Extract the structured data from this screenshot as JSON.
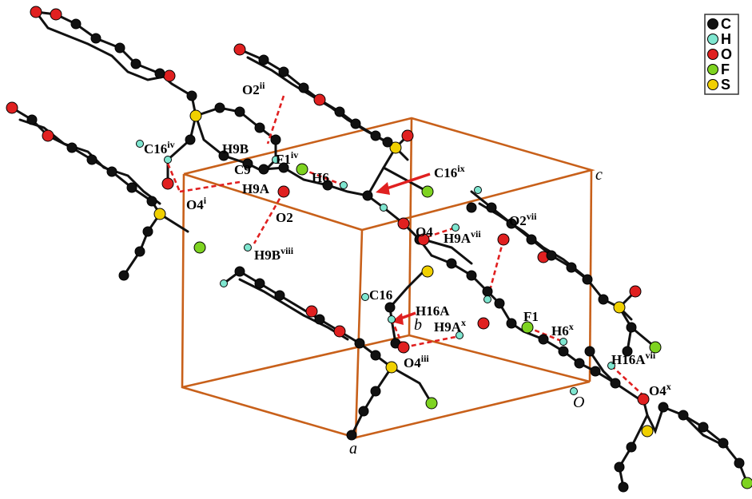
{
  "legend": {
    "items": [
      {
        "symbol": "C",
        "color": "#111111"
      },
      {
        "symbol": "H",
        "color": "#7fe6d0"
      },
      {
        "symbol": "O",
        "color": "#e02020"
      },
      {
        "symbol": "F",
        "color": "#7ed321"
      },
      {
        "symbol": "S",
        "color": "#f0d000"
      }
    ]
  },
  "axes": {
    "a": "a",
    "b": "b",
    "c": "c",
    "origin": "O"
  },
  "labels": [
    {
      "id": "O2ii",
      "base": "O2",
      "sup": "ii"
    },
    {
      "id": "C16iv",
      "base": "C16",
      "sup": "iv"
    },
    {
      "id": "H9B",
      "base": "H9B",
      "sup": ""
    },
    {
      "id": "F1iv",
      "base": "F1",
      "sup": "iv"
    },
    {
      "id": "C9",
      "base": "C9",
      "sup": ""
    },
    {
      "id": "H6",
      "base": "H6",
      "sup": ""
    },
    {
      "id": "C16ix",
      "base": "C16",
      "sup": "ix"
    },
    {
      "id": "H9A",
      "base": "H9A",
      "sup": ""
    },
    {
      "id": "O4i",
      "base": "O4",
      "sup": "i"
    },
    {
      "id": "O2",
      "base": "O2",
      "sup": ""
    },
    {
      "id": "O4",
      "base": "O4",
      "sup": ""
    },
    {
      "id": "O2vii",
      "base": "O2",
      "sup": "vii"
    },
    {
      "id": "H9Avii",
      "base": "H9A",
      "sup": "vii"
    },
    {
      "id": "H9Bviii",
      "base": "H9B",
      "sup": "viii"
    },
    {
      "id": "C16",
      "base": "C16",
      "sup": ""
    },
    {
      "id": "H16A",
      "base": "H16A",
      "sup": ""
    },
    {
      "id": "H9Ax",
      "base": "H9A",
      "sup": "x"
    },
    {
      "id": "F1",
      "base": "F1",
      "sup": ""
    },
    {
      "id": "H6x",
      "base": "H6",
      "sup": "x"
    },
    {
      "id": "O4iii",
      "base": "O4",
      "sup": "iii"
    },
    {
      "id": "H16Avii",
      "base": "H16A",
      "sup": "vii"
    },
    {
      "id": "O4x",
      "base": "O4",
      "sup": "x"
    }
  ]
}
